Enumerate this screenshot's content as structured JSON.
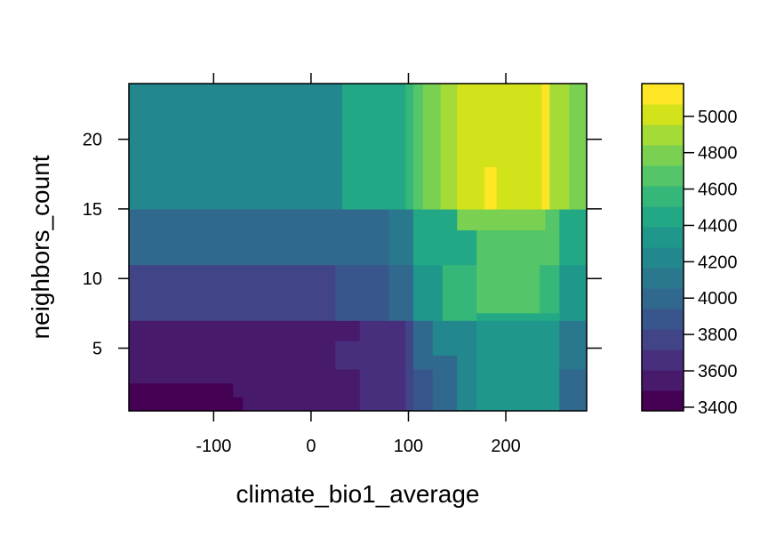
{
  "chart_data": {
    "type": "heatmap",
    "xlabel": "climate_bio1_average",
    "ylabel": "neighbors_count",
    "xlim": [
      -187,
      283
    ],
    "ylim": [
      0.5,
      24
    ],
    "xticks": [
      -100,
      0,
      100,
      200
    ],
    "xtick_labels": [
      "-100",
      "0",
      "100",
      "200"
    ],
    "yticks": [
      5,
      10,
      15,
      20
    ],
    "ytick_labels": [
      "5",
      "10",
      "15",
      "20"
    ],
    "colorbar": {
      "range": [
        3380,
        5180
      ],
      "ticks": [
        3400,
        3600,
        3800,
        4000,
        4200,
        4400,
        4600,
        4800,
        5000
      ],
      "tick_labels": [
        "3400",
        "3600",
        "3800",
        "4000",
        "4200",
        "4400",
        "4600",
        "4800",
        "5000"
      ],
      "colors": [
        "#440154",
        "#481A6C",
        "#472F7D",
        "#414487",
        "#39568C",
        "#31688E",
        "#2A788E",
        "#23888E",
        "#1F988B",
        "#22A884",
        "#35B779",
        "#54C568",
        "#7AD151",
        "#A5DB36",
        "#D2E21B",
        "#FDE725"
      ]
    },
    "cells": [
      {
        "x0": -187,
        "x1": -80,
        "y0": 0.5,
        "y1": 2.5,
        "value": 3400
      },
      {
        "x0": -187,
        "x1": -70,
        "y0": 0.5,
        "y1": 1.5,
        "value": 3400
      },
      {
        "x0": -80,
        "x1": 50,
        "y0": 1.5,
        "y1": 2.5,
        "value": 3500
      },
      {
        "x0": -70,
        "x1": 50,
        "y0": 0.5,
        "y1": 1.5,
        "value": 3500
      },
      {
        "x0": -187,
        "x1": 50,
        "y0": 2.5,
        "y1": 5.5,
        "value": 3500
      },
      {
        "x0": 50,
        "x1": 97,
        "y0": 0.5,
        "y1": 5.5,
        "value": 3620
      },
      {
        "x0": -187,
        "x1": 50,
        "y0": 5.5,
        "y1": 7.0,
        "value": 3600
      },
      {
        "x0": -15,
        "x1": 50,
        "y0": 5.5,
        "y1": 5.5,
        "value": 3600
      },
      {
        "x0": 50,
        "x1": 97,
        "y0": 5.5,
        "y1": 7.0,
        "value": 3700
      },
      {
        "x0": 25,
        "x1": 60,
        "y0": 3.5,
        "y1": 5.5,
        "value": 3620
      },
      {
        "x0": 97,
        "x1": 105,
        "y0": 0.5,
        "y1": 7.0,
        "value": 3800
      },
      {
        "x0": 105,
        "x1": 125,
        "y0": 0.5,
        "y1": 3.5,
        "value": 3900
      },
      {
        "x0": 125,
        "x1": 150,
        "y0": 0.5,
        "y1": 4.5,
        "value": 4000
      },
      {
        "x0": 105,
        "x1": 125,
        "y0": 3.5,
        "y1": 7.0,
        "value": 4000
      },
      {
        "x0": 150,
        "x1": 170,
        "y0": 0.5,
        "y1": 4.5,
        "value": 4200
      },
      {
        "x0": 125,
        "x1": 170,
        "y0": 4.5,
        "y1": 7.0,
        "value": 4200
      },
      {
        "x0": 170,
        "x1": 255,
        "y0": 0.5,
        "y1": 7.0,
        "value": 4300
      },
      {
        "x0": 255,
        "x1": 283,
        "y0": 0.5,
        "y1": 3.5,
        "value": 3950
      },
      {
        "x0": 255,
        "x1": 283,
        "y0": 3.5,
        "y1": 7.0,
        "value": 4100
      },
      {
        "x0": -187,
        "x1": 25,
        "y0": 7.0,
        "y1": 11.0,
        "value": 3800
      },
      {
        "x0": 25,
        "x1": 80,
        "y0": 7.0,
        "y1": 11.0,
        "value": 3900
      },
      {
        "x0": 80,
        "x1": 105,
        "y0": 7.0,
        "y1": 11.0,
        "value": 4050
      },
      {
        "x0": 105,
        "x1": 135,
        "y0": 7.0,
        "y1": 11.0,
        "value": 4350
      },
      {
        "x0": 135,
        "x1": 170,
        "y0": 7.0,
        "y1": 11.0,
        "value": 4550
      },
      {
        "x0": 170,
        "x1": 235,
        "y0": 7.5,
        "y1": 11.0,
        "value": 4650
      },
      {
        "x0": 235,
        "x1": 255,
        "y0": 7.5,
        "y1": 11.0,
        "value": 4550
      },
      {
        "x0": 255,
        "x1": 283,
        "y0": 7.0,
        "y1": 11.0,
        "value": 4350
      },
      {
        "x0": 170,
        "x1": 255,
        "y0": 7.0,
        "y1": 7.5,
        "value": 4500
      },
      {
        "x0": -187,
        "x1": 25,
        "y0": 11.0,
        "y1": 15.0,
        "value": 3950
      },
      {
        "x0": 25,
        "x1": 80,
        "y0": 11.0,
        "y1": 15.0,
        "value": 4050
      },
      {
        "x0": 80,
        "x1": 105,
        "y0": 11.0,
        "y1": 15.0,
        "value": 4150
      },
      {
        "x0": 105,
        "x1": 170,
        "y0": 11.0,
        "y1": 15.0,
        "value": 4450
      },
      {
        "x0": 170,
        "x1": 255,
        "y0": 11.0,
        "y1": 15.0,
        "value": 4650
      },
      {
        "x0": 255,
        "x1": 283,
        "y0": 11.0,
        "y1": 15.0,
        "value": 4500
      },
      {
        "x0": 150,
        "x1": 240,
        "y0": 13.5,
        "y1": 15.0,
        "value": 4750
      },
      {
        "x0": -187,
        "x1": 32,
        "y0": 15.0,
        "y1": 24.0,
        "value": 4250
      },
      {
        "x0": 32,
        "x1": 97,
        "y0": 15.0,
        "y1": 24.0,
        "value": 4450
      },
      {
        "x0": 97,
        "x1": 105,
        "y0": 15.0,
        "y1": 24.0,
        "value": 4550
      },
      {
        "x0": 105,
        "x1": 115,
        "y0": 15.0,
        "y1": 24.0,
        "value": 4700
      },
      {
        "x0": 115,
        "x1": 133,
        "y0": 15.0,
        "y1": 24.0,
        "value": 4800
      },
      {
        "x0": 133,
        "x1": 150,
        "y0": 15.0,
        "y1": 24.0,
        "value": 4900
      },
      {
        "x0": 150,
        "x1": 237,
        "y0": 15.0,
        "y1": 24.0,
        "value": 5000
      },
      {
        "x0": 237,
        "x1": 245,
        "y0": 15.0,
        "y1": 24.0,
        "value": 5150
      },
      {
        "x0": 245,
        "x1": 265,
        "y0": 15.0,
        "y1": 24.0,
        "value": 4900
      },
      {
        "x0": 265,
        "x1": 283,
        "y0": 15.0,
        "y1": 24.0,
        "value": 4800
      },
      {
        "x0": 178,
        "x1": 190,
        "y0": 15.0,
        "y1": 18.0,
        "value": 5150
      }
    ]
  }
}
